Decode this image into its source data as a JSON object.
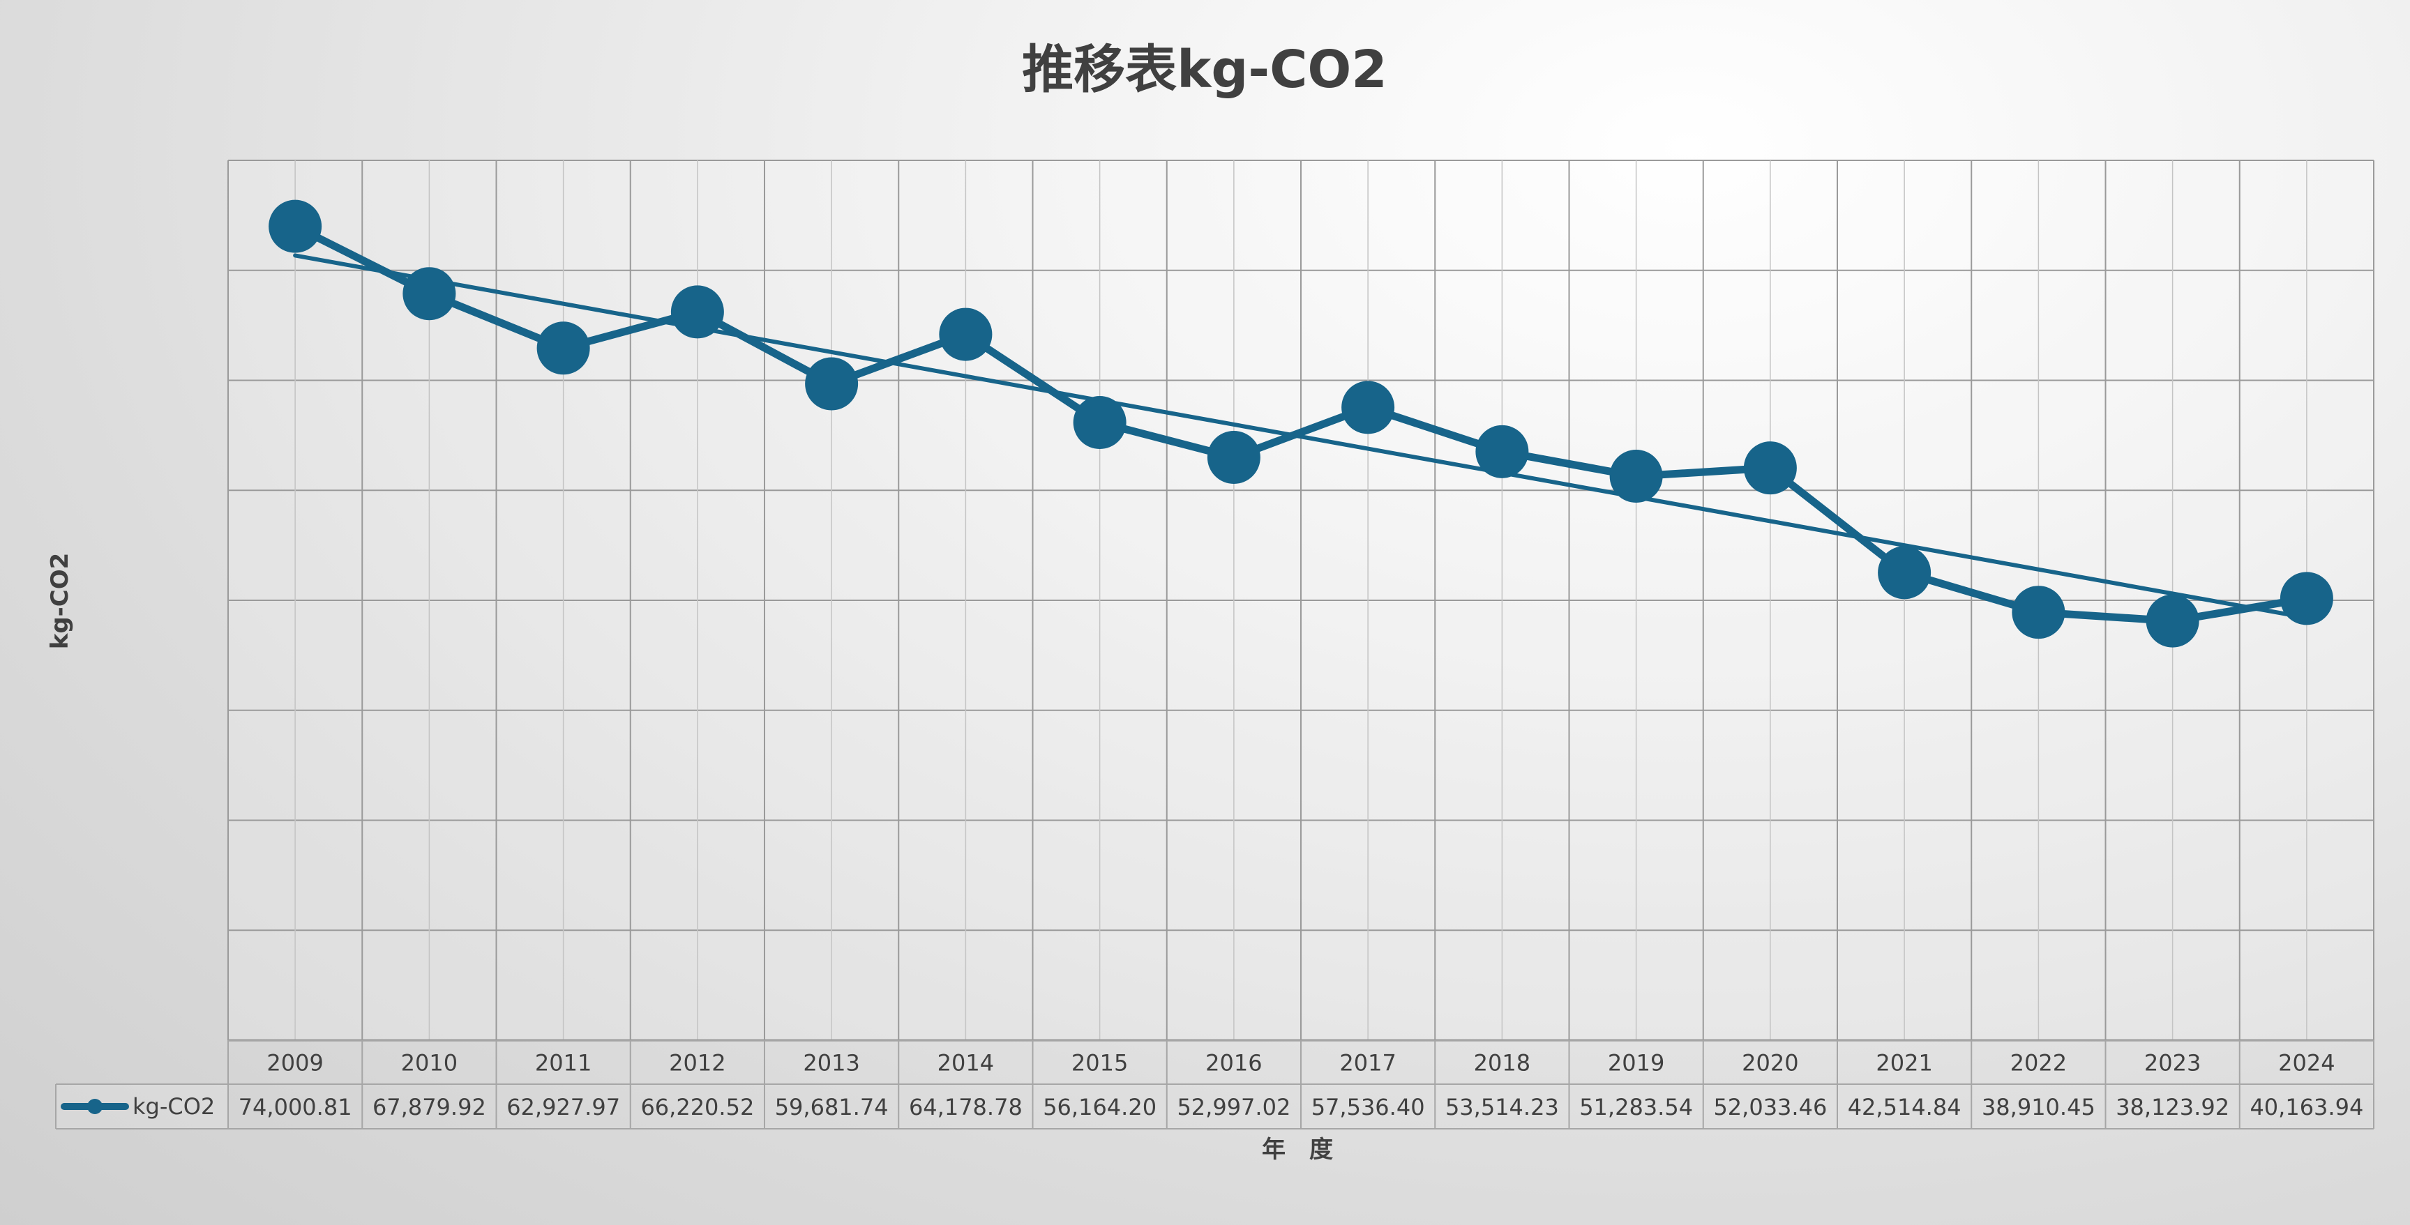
{
  "colors": {
    "series": "#17648A",
    "text": "#404040"
  },
  "chart_data": {
    "type": "line",
    "title": "推移表kg-CO2",
    "xlabel": "年　度",
    "ylabel": "kg-CO2",
    "categories": [
      "2009",
      "2010",
      "2011",
      "2012",
      "2013",
      "2014",
      "2015",
      "2016",
      "2017",
      "2018",
      "2019",
      "2020",
      "2021",
      "2022",
      "2023",
      "2024"
    ],
    "series": [
      {
        "name": "kg-CO2",
        "values": [
          74000.81,
          67879.92,
          62927.97,
          66220.52,
          59681.74,
          64178.78,
          56164.2,
          52997.02,
          57536.4,
          53514.23,
          51283.54,
          52033.46,
          42514.84,
          38910.45,
          38123.92,
          40163.94
        ],
        "value_labels": [
          "74,000.81",
          "67,879.92",
          "62,927.97",
          "66,220.52",
          "59,681.74",
          "64,178.78",
          "56,164.20",
          "52,997.02",
          "57,536.40",
          "53,514.23",
          "51,283.54",
          "52,033.46",
          "42,514.84",
          "38,910.45",
          "38,123.92",
          "40,163.94"
        ]
      }
    ],
    "trendline": "linear",
    "ylim": [
      0,
      80000
    ],
    "y_gridline_step": 10000,
    "y_tick_labels_shown": false,
    "grid": true,
    "legend": "data-table"
  }
}
